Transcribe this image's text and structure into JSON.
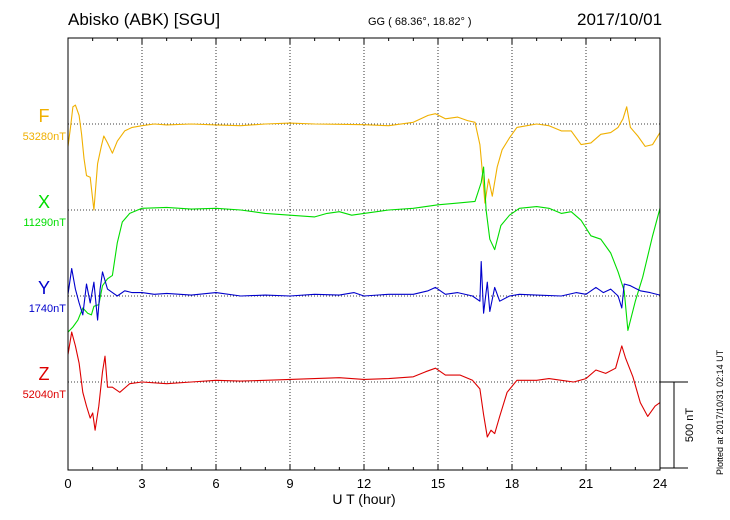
{
  "header": {
    "station": "Abisko (ABK)  [SGU]",
    "coords": "GG ( 68.36°,  18.82° )",
    "date": "2017/10/01"
  },
  "footer": {
    "plotted": "Plotted at 2017/10/31 02:14 UT"
  },
  "scale_label": "500 nT",
  "colors": {
    "F": "#f0b000",
    "X": "#00dd00",
    "Y": "#0000cc",
    "Z": "#dd0000",
    "grid": "#000000"
  },
  "chart_data": {
    "type": "line",
    "xlabel": "U T (hour)",
    "xlim": [
      0,
      24
    ],
    "xticks": [
      0,
      3,
      6,
      9,
      12,
      15,
      18,
      21,
      24
    ],
    "grid": true,
    "units": "nT",
    "scale_bar_nT": 500,
    "series": [
      {
        "name": "F",
        "baseline_label": "53280nT",
        "baseline": 53280,
        "points": [
          [
            0,
            53150
          ],
          [
            0.1,
            53260
          ],
          [
            0.2,
            53380
          ],
          [
            0.3,
            53390
          ],
          [
            0.45,
            53330
          ],
          [
            0.55,
            53220
          ],
          [
            0.65,
            53080
          ],
          [
            0.75,
            52980
          ],
          [
            0.9,
            52970
          ],
          [
            1.05,
            52780
          ],
          [
            1.2,
            53050
          ],
          [
            1.35,
            53150
          ],
          [
            1.45,
            53210
          ],
          [
            1.6,
            53170
          ],
          [
            1.8,
            53110
          ],
          [
            2.0,
            53180
          ],
          [
            2.3,
            53240
          ],
          [
            2.6,
            53260
          ],
          [
            3,
            53270
          ],
          [
            3.5,
            53280
          ],
          [
            4,
            53275
          ],
          [
            5,
            53280
          ],
          [
            6,
            53275
          ],
          [
            7,
            53270
          ],
          [
            8,
            53280
          ],
          [
            9,
            53285
          ],
          [
            10,
            53280
          ],
          [
            11,
            53278
          ],
          [
            12,
            53276
          ],
          [
            13,
            53270
          ],
          [
            14,
            53290
          ],
          [
            14.6,
            53330
          ],
          [
            14.9,
            53340
          ],
          [
            15.3,
            53310
          ],
          [
            15.8,
            53320
          ],
          [
            16.2,
            53300
          ],
          [
            16.5,
            53290
          ],
          [
            16.7,
            53160
          ],
          [
            16.8,
            53000
          ],
          [
            16.9,
            52820
          ],
          [
            17.05,
            52960
          ],
          [
            17.2,
            52860
          ],
          [
            17.4,
            53030
          ],
          [
            17.6,
            53130
          ],
          [
            17.9,
            53200
          ],
          [
            18.2,
            53260
          ],
          [
            18.6,
            53270
          ],
          [
            19,
            53280
          ],
          [
            19.5,
            53270
          ],
          [
            20,
            53240
          ],
          [
            20.4,
            53240
          ],
          [
            20.8,
            53160
          ],
          [
            21.2,
            53170
          ],
          [
            21.6,
            53220
          ],
          [
            22,
            53230
          ],
          [
            22.3,
            53260
          ],
          [
            22.5,
            53310
          ],
          [
            22.65,
            53380
          ],
          [
            22.8,
            53260
          ],
          [
            23.1,
            53210
          ],
          [
            23.4,
            53150
          ],
          [
            23.7,
            53160
          ],
          [
            24,
            53230
          ]
        ]
      },
      {
        "name": "X",
        "baseline_label": "11290nT",
        "baseline": 11290,
        "points": [
          [
            0,
            10580
          ],
          [
            0.2,
            10610
          ],
          [
            0.4,
            10650
          ],
          [
            0.6,
            10720
          ],
          [
            0.8,
            10690
          ],
          [
            0.95,
            10680
          ],
          [
            1.05,
            10730
          ],
          [
            1.25,
            10740
          ],
          [
            1.4,
            10850
          ],
          [
            1.6,
            10890
          ],
          [
            1.8,
            10910
          ],
          [
            2.0,
            11100
          ],
          [
            2.2,
            11220
          ],
          [
            2.5,
            11270
          ],
          [
            3,
            11300
          ],
          [
            4,
            11305
          ],
          [
            5,
            11295
          ],
          [
            6,
            11300
          ],
          [
            7,
            11290
          ],
          [
            8,
            11270
          ],
          [
            9,
            11260
          ],
          [
            10,
            11250
          ],
          [
            10.5,
            11270
          ],
          [
            11,
            11280
          ],
          [
            11.5,
            11260
          ],
          [
            12,
            11270
          ],
          [
            13,
            11290
          ],
          [
            14,
            11300
          ],
          [
            15,
            11320
          ],
          [
            15.8,
            11330
          ],
          [
            16.5,
            11340
          ],
          [
            16.75,
            11450
          ],
          [
            16.85,
            11540
          ],
          [
            16.95,
            11290
          ],
          [
            17.1,
            11120
          ],
          [
            17.3,
            11060
          ],
          [
            17.55,
            11200
          ],
          [
            17.9,
            11260
          ],
          [
            18.3,
            11300
          ],
          [
            19,
            11310
          ],
          [
            19.5,
            11300
          ],
          [
            20,
            11270
          ],
          [
            20.4,
            11280
          ],
          [
            20.8,
            11230
          ],
          [
            21.2,
            11140
          ],
          [
            21.6,
            11120
          ],
          [
            22,
            11040
          ],
          [
            22.3,
            10930
          ],
          [
            22.55,
            10820
          ],
          [
            22.7,
            10590
          ],
          [
            23,
            10760
          ],
          [
            23.3,
            10900
          ],
          [
            23.7,
            11140
          ],
          [
            24,
            11300
          ]
        ]
      },
      {
        "name": "Y",
        "baseline_label": "1740nT",
        "baseline": 1740,
        "points": [
          [
            0,
            1750
          ],
          [
            0.15,
            1900
          ],
          [
            0.3,
            1780
          ],
          [
            0.45,
            1700
          ],
          [
            0.6,
            1630
          ],
          [
            0.75,
            1810
          ],
          [
            0.9,
            1700
          ],
          [
            1.05,
            1820
          ],
          [
            1.2,
            1600
          ],
          [
            1.3,
            1780
          ],
          [
            1.4,
            1880
          ],
          [
            1.6,
            1780
          ],
          [
            1.8,
            1760
          ],
          [
            2.0,
            1740
          ],
          [
            2.3,
            1770
          ],
          [
            2.6,
            1760
          ],
          [
            3,
            1760
          ],
          [
            3.5,
            1750
          ],
          [
            4,
            1755
          ],
          [
            5,
            1745
          ],
          [
            6,
            1760
          ],
          [
            7,
            1740
          ],
          [
            8,
            1745
          ],
          [
            9,
            1740
          ],
          [
            10,
            1750
          ],
          [
            11,
            1745
          ],
          [
            11.6,
            1760
          ],
          [
            12,
            1740
          ],
          [
            13,
            1750
          ],
          [
            14,
            1750
          ],
          [
            14.6,
            1770
          ],
          [
            14.9,
            1790
          ],
          [
            15.3,
            1750
          ],
          [
            15.8,
            1760
          ],
          [
            16.4,
            1740
          ],
          [
            16.7,
            1710
          ],
          [
            16.75,
            1940
          ],
          [
            16.85,
            1640
          ],
          [
            17.0,
            1820
          ],
          [
            17.1,
            1650
          ],
          [
            17.3,
            1790
          ],
          [
            17.5,
            1710
          ],
          [
            17.9,
            1740
          ],
          [
            18.3,
            1750
          ],
          [
            19,
            1745
          ],
          [
            20,
            1740
          ],
          [
            20.6,
            1760
          ],
          [
            21.0,
            1750
          ],
          [
            21.4,
            1790
          ],
          [
            21.7,
            1760
          ],
          [
            22.0,
            1780
          ],
          [
            22.3,
            1740
          ],
          [
            22.45,
            1670
          ],
          [
            22.55,
            1810
          ],
          [
            22.8,
            1800
          ],
          [
            23.2,
            1770
          ],
          [
            23.6,
            1760
          ],
          [
            24,
            1745
          ]
        ]
      },
      {
        "name": "Z",
        "baseline_label": "52040nT",
        "baseline": 52040,
        "points": [
          [
            0,
            52200
          ],
          [
            0.15,
            52330
          ],
          [
            0.3,
            52250
          ],
          [
            0.45,
            52150
          ],
          [
            0.6,
            51980
          ],
          [
            0.75,
            51900
          ],
          [
            0.9,
            51830
          ],
          [
            1.0,
            51860
          ],
          [
            1.1,
            51760
          ],
          [
            1.25,
            51900
          ],
          [
            1.4,
            52100
          ],
          [
            1.5,
            52190
          ],
          [
            1.6,
            52010
          ],
          [
            1.8,
            52010
          ],
          [
            2.1,
            51980
          ],
          [
            2.5,
            52030
          ],
          [
            3,
            52040
          ],
          [
            4,
            52030
          ],
          [
            5,
            52040
          ],
          [
            6,
            52050
          ],
          [
            7,
            52045
          ],
          [
            8,
            52050
          ],
          [
            9,
            52055
          ],
          [
            10,
            52060
          ],
          [
            11,
            52065
          ],
          [
            12,
            52055
          ],
          [
            13,
            52060
          ],
          [
            14,
            52070
          ],
          [
            14.5,
            52100
          ],
          [
            14.9,
            52120
          ],
          [
            15.3,
            52080
          ],
          [
            15.9,
            52080
          ],
          [
            16.4,
            52050
          ],
          [
            16.7,
            52000
          ],
          [
            16.85,
            51850
          ],
          [
            17.0,
            51720
          ],
          [
            17.15,
            51760
          ],
          [
            17.3,
            51740
          ],
          [
            17.5,
            51840
          ],
          [
            17.8,
            51980
          ],
          [
            18.2,
            52050
          ],
          [
            19,
            52050
          ],
          [
            19.5,
            52060
          ],
          [
            20,
            52050
          ],
          [
            20.5,
            52040
          ],
          [
            21.0,
            52060
          ],
          [
            21.4,
            52110
          ],
          [
            21.8,
            52090
          ],
          [
            22.2,
            52120
          ],
          [
            22.45,
            52250
          ],
          [
            22.6,
            52180
          ],
          [
            22.9,
            52070
          ],
          [
            23.2,
            51920
          ],
          [
            23.5,
            51840
          ],
          [
            23.8,
            51900
          ],
          [
            24,
            51920
          ]
        ]
      }
    ]
  }
}
